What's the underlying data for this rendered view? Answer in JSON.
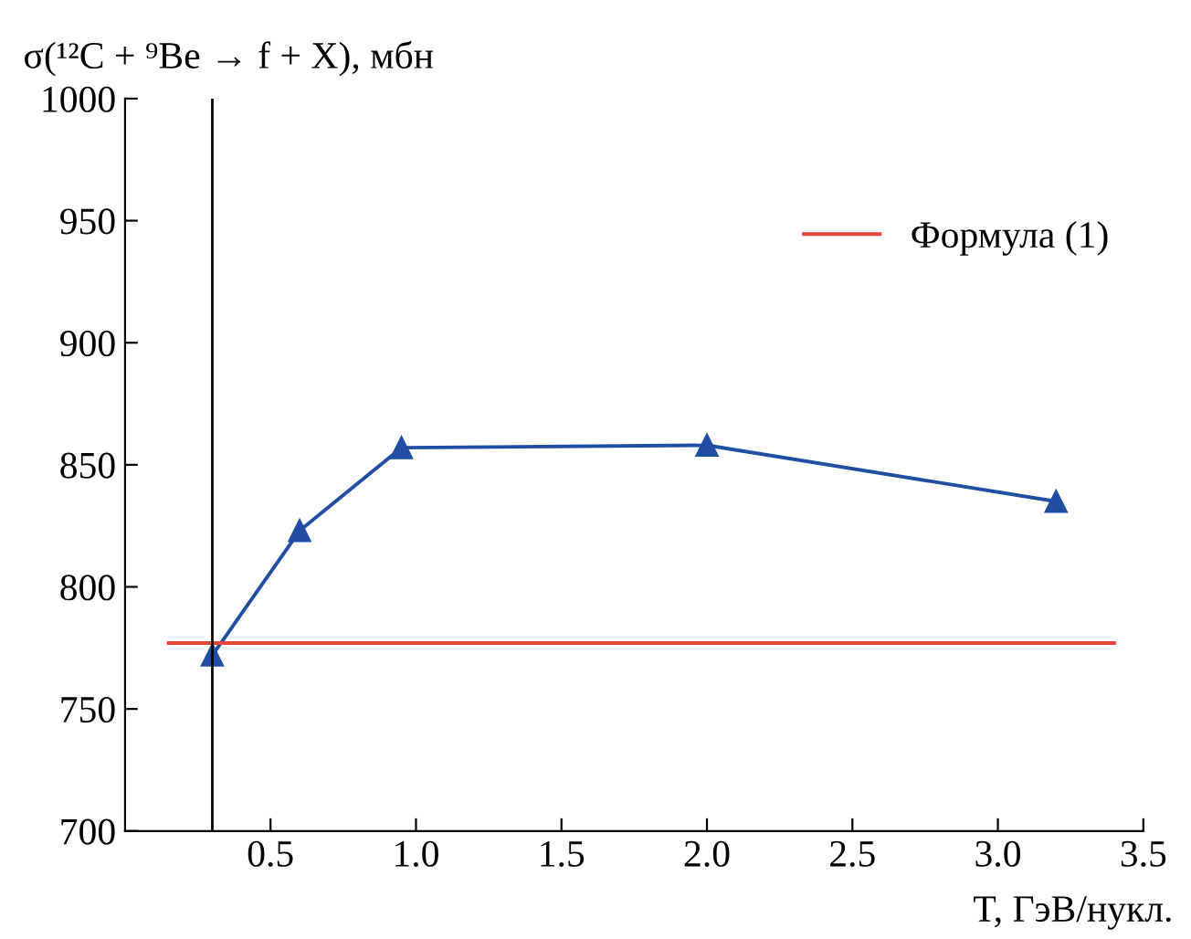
{
  "chart_data": {
    "type": "line",
    "ylabel": "σ(¹²C + ⁹Be → f + X), мбн",
    "xlabel": "T, ГэВ/нукл.",
    "xlim": [
      0,
      3.5
    ],
    "xticks": [
      0.5,
      {
        "value": 1,
        "label": "1.0"
      },
      1.5,
      {
        "value": 2,
        "label": "2.0"
      },
      2.5,
      {
        "value": 3,
        "label": "3.0"
      },
      3.5
    ],
    "ylim": [
      700,
      1000
    ],
    "yticks": [
      700,
      750,
      800,
      850,
      900,
      950,
      1000
    ],
    "series": [
      {
        "color": "#1f4ea3",
        "marker": "triangle",
        "x": [
          0.3,
          0.6,
          0.95,
          2.0,
          3.2
        ],
        "values": [
          772,
          823,
          857,
          858,
          835
        ]
      },
      {
        "name": "Формула (1)",
        "color": "#e8433a",
        "marker": "none",
        "x": [
          0.15,
          3.4
        ],
        "values": [
          777,
          777
        ]
      }
    ],
    "ref_lines": [
      {
        "axis": "x",
        "value": 0.3,
        "color": "#000000"
      }
    ],
    "legend": "top right",
    "grid": false
  }
}
